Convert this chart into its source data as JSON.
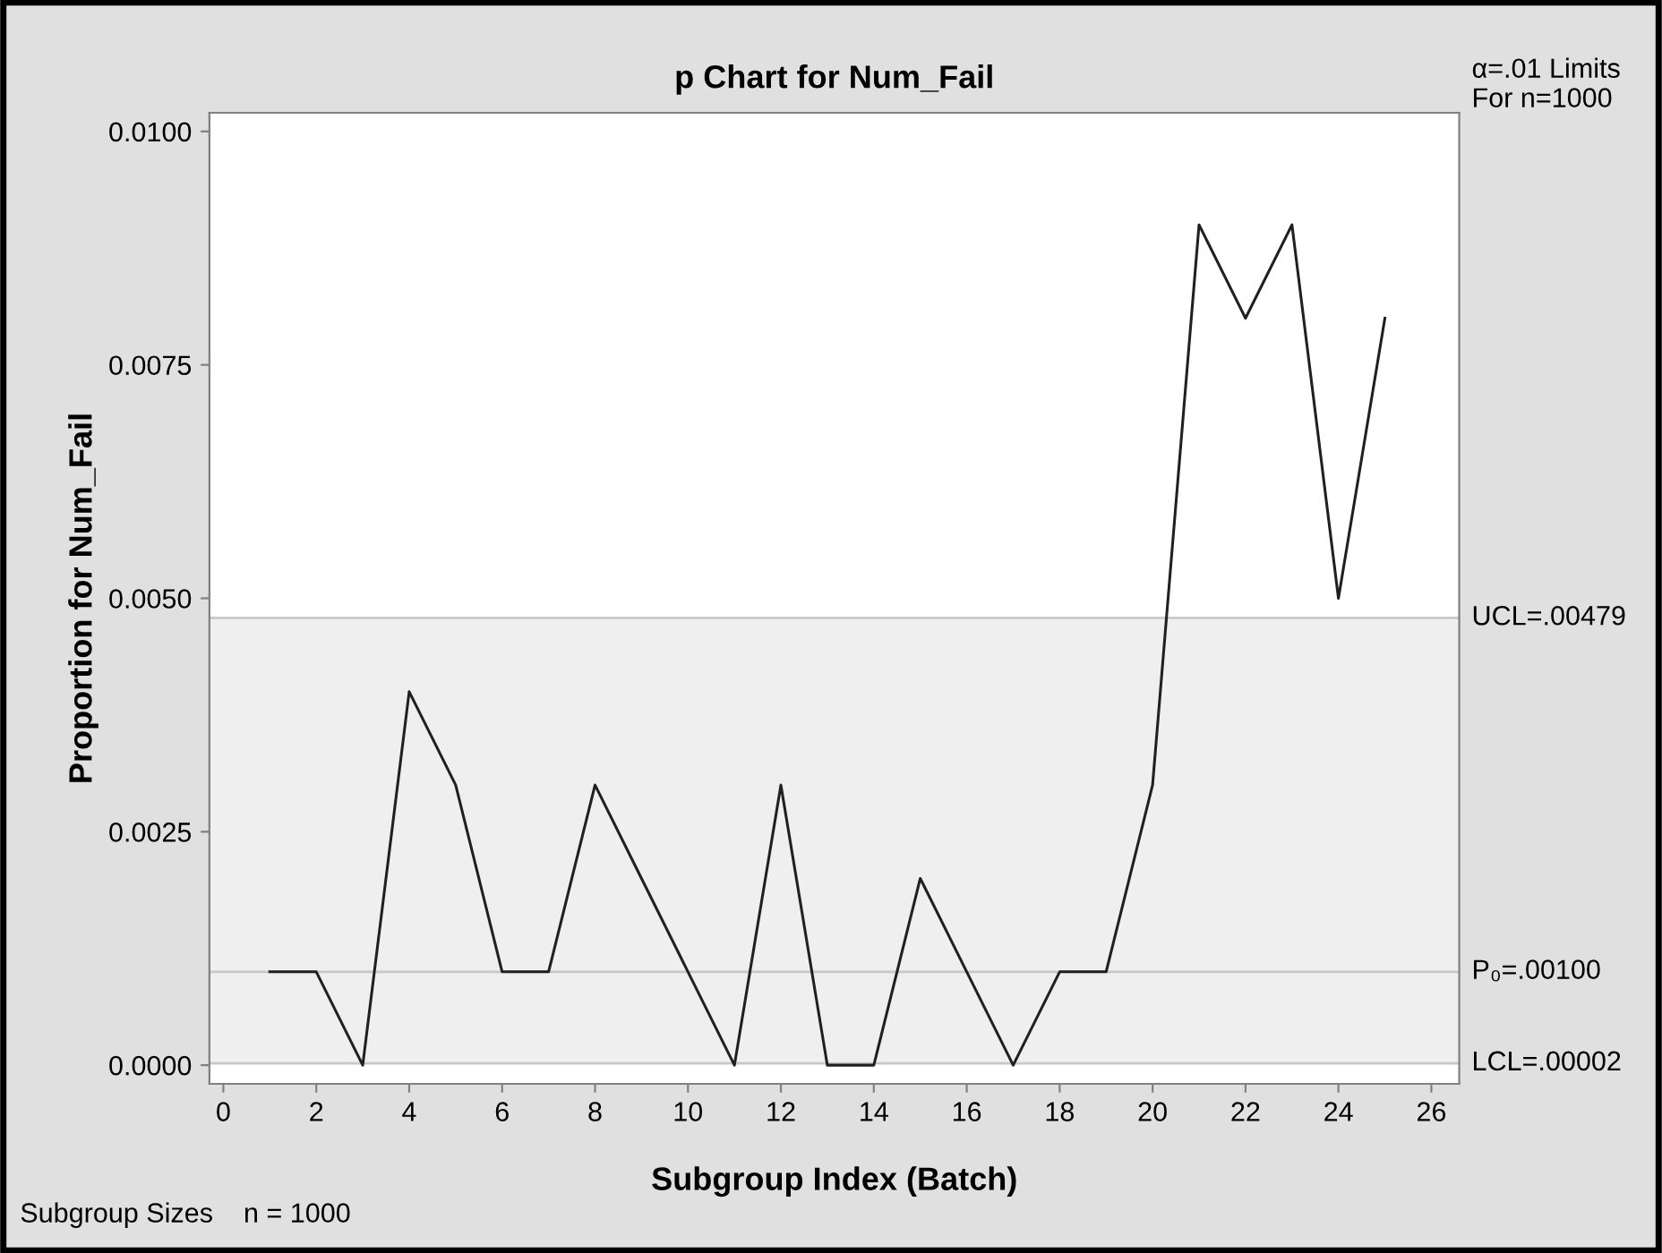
{
  "chart_data": {
    "type": "line",
    "title": "p Chart for Num_Fail",
    "xlabel": "Subgroup Index (Batch)",
    "ylabel": "Proportion for Num_Fail",
    "x": [
      1,
      2,
      3,
      4,
      5,
      6,
      7,
      8,
      9,
      10,
      11,
      12,
      13,
      14,
      15,
      16,
      17,
      18,
      19,
      20,
      21,
      22,
      23,
      24,
      25
    ],
    "series": [
      {
        "color": "#202020",
        "values": [
          0.001,
          0.001,
          0.0,
          0.004,
          0.003,
          0.001,
          0.001,
          0.003,
          0.002,
          0.001,
          0.0,
          0.003,
          0.0,
          0.0,
          0.002,
          0.001,
          0.0,
          0.001,
          0.001,
          0.003,
          0.009,
          0.008,
          0.009,
          0.005,
          0.008
        ]
      }
    ],
    "xlim": [
      -0.3,
      26.6
    ],
    "xticks": [
      0,
      2,
      4,
      6,
      8,
      10,
      12,
      14,
      16,
      18,
      20,
      22,
      24,
      26
    ],
    "ylim": [
      -0.0002,
      0.0102
    ],
    "yticks": [
      {
        "value": 0.0,
        "label": "0.0000"
      },
      {
        "value": 0.0025,
        "label": "0.0025"
      },
      {
        "value": 0.005,
        "label": "0.0050"
      },
      {
        "value": 0.0075,
        "label": "0.0075"
      },
      {
        "value": 0.01,
        "label": "0.0100"
      }
    ],
    "bands": [
      {
        "axis": "y",
        "from": 2e-05,
        "to": 0.00479,
        "color": "#efefef"
      }
    ],
    "ref_lines": [
      {
        "axis": "y",
        "value": 0.00479,
        "label": "UCL=.00479",
        "color": "#c8c8c8"
      },
      {
        "axis": "y",
        "value": 0.001,
        "label": "P₀=.00100",
        "color": "#c8c8c8"
      },
      {
        "axis": "y",
        "value": 2e-05,
        "label": "LCL=.00002",
        "color": "#c8c8c8"
      }
    ],
    "annotations": [
      "α=.01 Limits\nFor n=1000",
      "Subgroup Sizes    n = 1000"
    ],
    "grid": false,
    "legend": false,
    "marker": "none",
    "line_style": "solid"
  }
}
